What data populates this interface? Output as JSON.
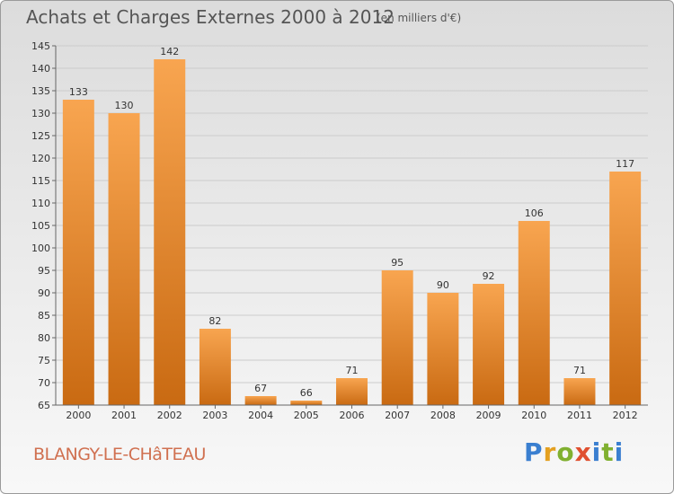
{
  "header": {
    "title": "Achats et Charges Externes 2000 à 2012",
    "subtitle": "(en milliers d'€)"
  },
  "footer": {
    "place": "BLANGY-LE-CHâTEAU",
    "logo": [
      "P",
      "r",
      "o",
      "x",
      "i",
      "t",
      "i"
    ]
  },
  "colors": {
    "bar_light": "#f8a550",
    "bar_dark": "#c96a12",
    "grid": "#cccccc"
  },
  "chart_data": {
    "type": "bar",
    "title": "Achats et Charges Externes 2000 à 2012",
    "subtitle": "(en milliers d'€)",
    "categories": [
      "2000",
      "2001",
      "2002",
      "2003",
      "2004",
      "2005",
      "2006",
      "2007",
      "2008",
      "2009",
      "2010",
      "2011",
      "2012"
    ],
    "values": [
      133,
      130,
      142,
      82,
      67,
      66,
      71,
      95,
      90,
      92,
      106,
      71,
      117
    ],
    "ylim": [
      65,
      145
    ],
    "yticks": [
      65,
      70,
      75,
      80,
      85,
      90,
      95,
      100,
      105,
      110,
      115,
      120,
      125,
      130,
      135,
      140,
      145
    ],
    "grid": true,
    "xlabel": "",
    "ylabel": ""
  }
}
